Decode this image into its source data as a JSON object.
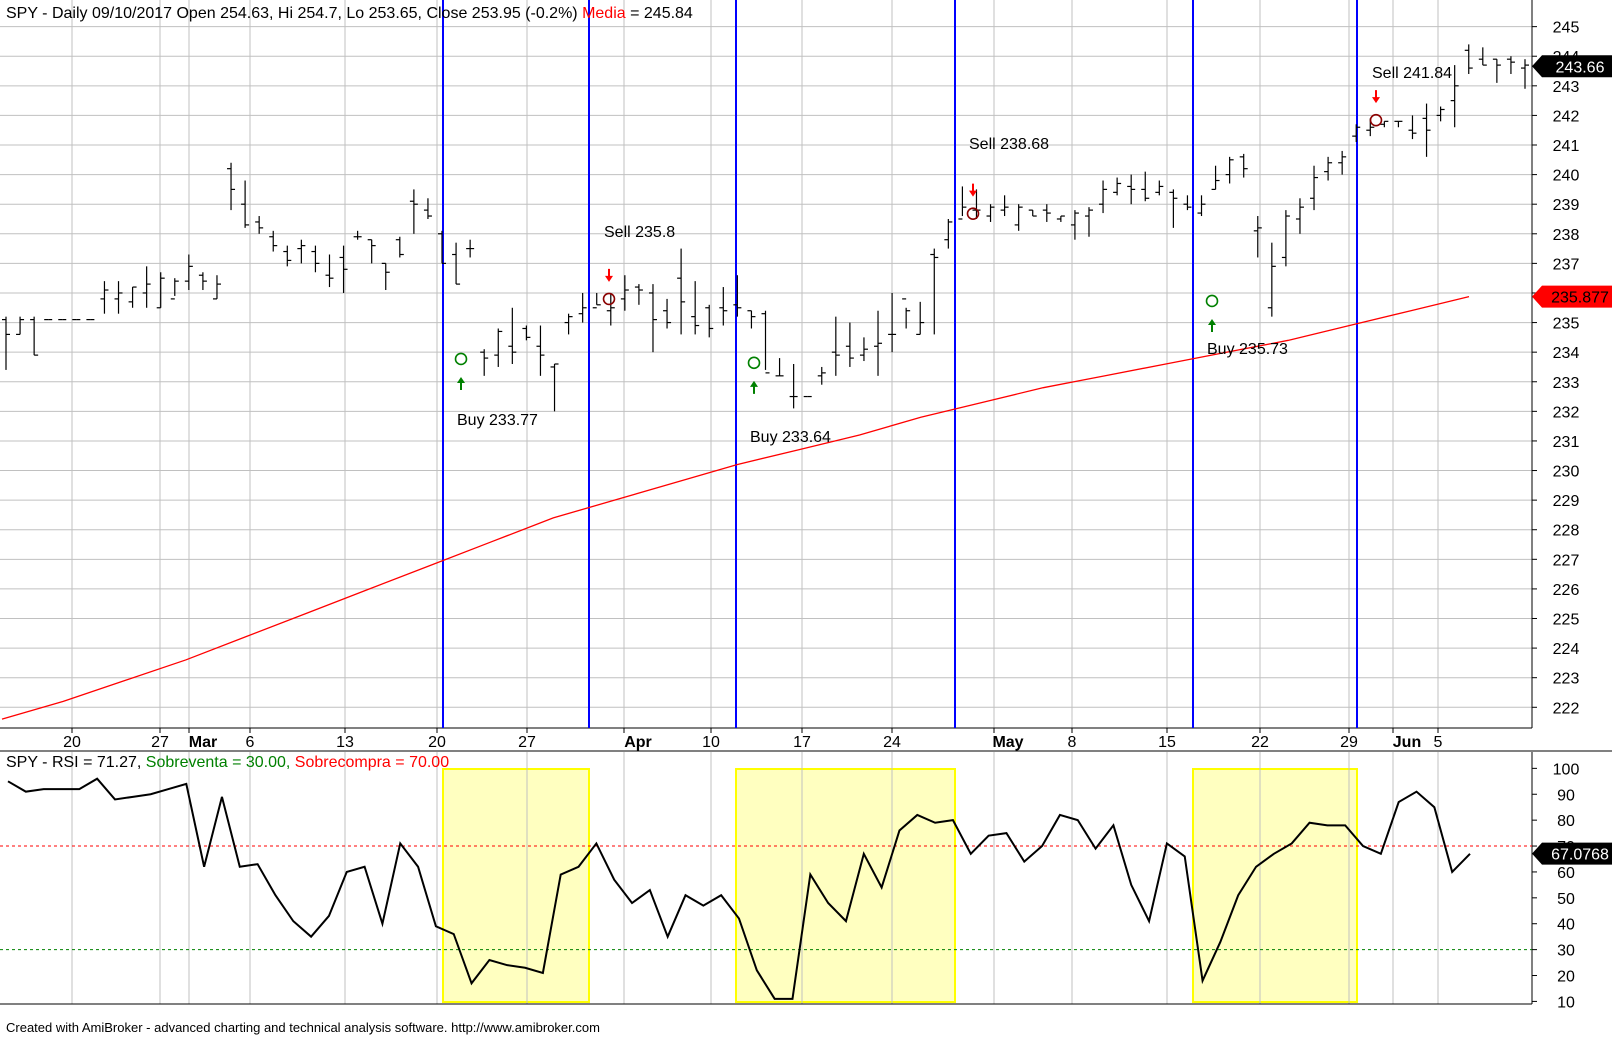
{
  "chart_data": [
    {
      "type": "ohlc",
      "header": {
        "symbol_line": "SPY - Daily 09/10/2017 Open 254.63, Hi 254.7, Lo 253.65, Close 253.95 (-0.2%)",
        "ma_label": "Media",
        "ma_value": "= 245.84"
      },
      "ylim": [
        221.3,
        245.9
      ],
      "y_ticks": [
        222,
        223,
        224,
        225,
        226,
        227,
        228,
        229,
        230,
        231,
        232,
        233,
        234,
        235,
        236,
        237,
        238,
        239,
        240,
        241,
        242,
        243,
        244,
        245
      ],
      "x_tick_labels": [
        "20",
        "27",
        "Mar",
        "6",
        "13",
        "20",
        "27",
        "Apr",
        "10",
        "17",
        "24",
        "May",
        "8",
        "15",
        "22",
        "29",
        "Jun",
        "5"
      ],
      "x_tick_bold": [
        "Mar",
        "Apr",
        "May",
        "Jun"
      ],
      "last_price": {
        "value": 243.66,
        "label": "243.66"
      },
      "ma_last": {
        "value": 235.877,
        "label": "235.877"
      },
      "bars": [
        [
          235.1,
          235.2,
          233.4,
          234.6
        ],
        [
          234.6,
          235.2,
          234.6,
          235.1
        ],
        [
          235.1,
          235.2,
          233.9,
          233.9
        ],
        [
          235.1,
          235.1,
          235.1,
          235.1
        ],
        [
          235.1,
          235.1,
          235.1,
          235.1
        ],
        [
          235.1,
          235.1,
          235.1,
          235.1
        ],
        [
          235.1,
          235.1,
          235.1,
          235.1
        ],
        [
          235.8,
          236.4,
          235.3,
          236.1
        ],
        [
          235.8,
          236.4,
          235.3,
          236.0
        ],
        [
          235.7,
          236.2,
          235.5,
          236.2
        ],
        [
          236.0,
          236.9,
          235.5,
          236.3
        ],
        [
          235.5,
          236.7,
          235.5,
          236.5
        ],
        [
          235.8,
          236.5,
          235.9,
          236.4
        ],
        [
          236.4,
          237.3,
          236.1,
          236.9
        ],
        [
          236.6,
          236.7,
          236.1,
          236.4
        ],
        [
          235.8,
          236.6,
          235.8,
          236.3
        ],
        [
          240.2,
          240.4,
          238.8,
          239.5
        ],
        [
          239.0,
          239.8,
          238.2,
          238.3
        ],
        [
          238.4,
          238.6,
          238.0,
          238.2
        ],
        [
          237.9,
          238.1,
          237.4,
          237.6
        ],
        [
          237.4,
          237.6,
          236.9,
          237.1
        ],
        [
          237.5,
          237.8,
          237.0,
          237.6
        ],
        [
          237.4,
          237.6,
          236.7,
          237.0
        ],
        [
          236.6,
          237.3,
          236.2,
          236.5
        ],
        [
          237.2,
          237.6,
          236.0,
          236.8
        ],
        [
          237.9,
          238.1,
          237.8,
          237.9
        ],
        [
          237.8,
          237.8,
          237.0,
          237.6
        ],
        [
          237.0,
          237.0,
          236.1,
          236.7
        ],
        [
          237.8,
          237.9,
          237.2,
          237.3
        ],
        [
          239.1,
          239.5,
          238.0,
          239.0
        ],
        [
          238.8,
          239.2,
          238.5,
          238.6
        ],
        [
          238.0,
          238.1,
          237.0,
          237.0
        ],
        [
          237.3,
          237.7,
          236.3,
          236.3
        ],
        [
          237.5,
          237.8,
          237.2,
          237.5
        ],
        [
          234.0,
          234.1,
          233.2,
          233.8
        ],
        [
          233.9,
          234.8,
          233.5,
          234.7
        ],
        [
          234.2,
          235.5,
          233.6,
          234.0
        ],
        [
          234.8,
          234.9,
          234.4,
          234.5
        ],
        [
          234.2,
          234.9,
          233.2,
          233.9
        ],
        [
          233.5,
          233.6,
          232.0,
          233.6
        ],
        [
          235.0,
          235.3,
          234.6,
          235.2
        ],
        [
          235.3,
          236.0,
          235.0,
          235.5
        ],
        [
          235.5,
          236.0,
          235.6,
          235.6
        ],
        [
          235.4,
          236.0,
          234.9,
          235.5
        ],
        [
          235.8,
          236.6,
          235.4,
          236.1
        ],
        [
          236.2,
          236.3,
          235.6,
          236.1
        ],
        [
          236.0,
          236.3,
          234.0,
          235.1
        ],
        [
          235.4,
          235.8,
          234.8,
          235.0
        ],
        [
          236.5,
          237.5,
          234.6,
          235.7
        ],
        [
          235.2,
          236.4,
          234.6,
          234.9
        ],
        [
          235.5,
          235.6,
          234.5,
          234.8
        ],
        [
          235.5,
          236.2,
          234.9,
          235.4
        ],
        [
          235.6,
          236.6,
          235.2,
          235.5
        ],
        [
          235.4,
          235.4,
          234.8,
          235.2
        ],
        [
          235.3,
          235.4,
          233.4,
          233.3
        ],
        [
          233.2,
          233.8,
          233.2,
          233.2
        ],
        [
          232.5,
          233.6,
          232.1,
          232.5
        ],
        [
          232.5,
          232.5,
          232.5,
          232.5
        ],
        [
          233.2,
          233.5,
          232.9,
          233.3
        ],
        [
          234.0,
          235.2,
          233.2,
          233.9
        ],
        [
          234.2,
          235.0,
          233.5,
          233.8
        ],
        [
          233.9,
          234.5,
          233.7,
          234.1
        ],
        [
          234.2,
          235.4,
          233.2,
          234.3
        ],
        [
          234.6,
          236.0,
          234.0,
          234.6
        ],
        [
          235.8,
          235.5,
          234.8,
          235.4
        ],
        [
          234.6,
          235.7,
          234.6,
          235.0
        ],
        [
          237.3,
          237.5,
          234.6,
          237.2
        ],
        [
          237.8,
          238.5,
          237.5,
          238.4
        ],
        [
          238.5,
          239.6,
          238.6,
          238.9
        ],
        [
          238.8,
          239.5,
          238.5,
          238.8
        ],
        [
          238.6,
          239.0,
          238.4,
          238.9
        ],
        [
          238.8,
          239.3,
          238.6,
          238.9
        ],
        [
          238.3,
          239.0,
          238.1,
          238.9
        ],
        [
          238.8,
          238.8,
          238.6,
          238.6
        ],
        [
          238.8,
          239.0,
          238.4,
          238.7
        ],
        [
          238.5,
          238.6,
          238.4,
          238.6
        ],
        [
          238.3,
          238.8,
          237.8,
          238.7
        ],
        [
          238.6,
          238.9,
          237.9,
          238.8
        ],
        [
          239.0,
          239.8,
          238.7,
          239.5
        ],
        [
          239.4,
          239.9,
          239.3,
          239.7
        ],
        [
          239.6,
          240.0,
          239.0,
          239.5
        ],
        [
          239.5,
          240.1,
          239.1,
          239.2
        ],
        [
          239.4,
          239.8,
          239.3,
          239.6
        ],
        [
          239.4,
          239.5,
          238.2,
          239.2
        ],
        [
          239.0,
          239.3,
          238.8,
          238.9
        ],
        [
          238.7,
          239.3,
          238.6,
          239.0
        ],
        [
          239.5,
          240.3,
          239.5,
          239.8
        ],
        [
          240.0,
          240.6,
          239.7,
          240.5
        ],
        [
          240.6,
          240.7,
          239.9,
          240.2
        ],
        [
          238.1,
          238.6,
          237.2,
          238.2
        ],
        [
          235.5,
          237.7,
          235.2,
          236.9
        ],
        [
          237.2,
          238.8,
          236.9,
          238.6
        ],
        [
          238.5,
          239.2,
          238.0,
          238.9
        ],
        [
          239.2,
          240.3,
          238.8,
          239.9
        ],
        [
          240.1,
          240.6,
          239.8,
          240.4
        ],
        [
          240.4,
          240.8,
          240.0,
          240.6
        ],
        [
          241.3,
          241.7,
          241.1,
          241.6
        ],
        [
          241.5,
          241.9,
          241.3,
          241.6
        ],
        [
          241.7,
          241.8,
          241.6,
          241.8
        ],
        [
          241.8,
          241.8,
          241.6,
          241.8
        ],
        [
          241.5,
          242.0,
          241.2,
          241.4
        ],
        [
          241.9,
          242.4,
          240.6,
          241.5
        ],
        [
          242.0,
          242.3,
          241.8,
          242.2
        ],
        [
          242.5,
          243.7,
          241.6,
          243.0
        ],
        [
          244.2,
          244.4,
          243.4,
          243.6
        ],
        [
          243.9,
          244.3,
          243.7,
          243.7
        ],
        [
          243.9,
          243.9,
          243.1,
          243.7
        ],
        [
          243.9,
          244.0,
          243.4,
          243.8
        ],
        [
          243.6,
          243.9,
          242.9,
          243.7
        ]
      ],
      "moving_average": [
        [
          0,
          221.6
        ],
        [
          20,
          222.2
        ],
        [
          40,
          222.9
        ],
        [
          60,
          223.6
        ],
        [
          80,
          224.4
        ],
        [
          100,
          225.2
        ],
        [
          120,
          226.0
        ],
        [
          140,
          226.8
        ],
        [
          160,
          227.6
        ],
        [
          180,
          228.4
        ],
        [
          200,
          229.0
        ],
        [
          220,
          229.6
        ],
        [
          240,
          230.2
        ],
        [
          260,
          230.7
        ],
        [
          280,
          231.2
        ],
        [
          300,
          231.8
        ],
        [
          320,
          232.3
        ],
        [
          340,
          232.8
        ],
        [
          360,
          233.2
        ],
        [
          380,
          233.6
        ],
        [
          400,
          234.0
        ],
        [
          420,
          234.4
        ],
        [
          440,
          234.9
        ],
        [
          460,
          235.4
        ],
        [
          479,
          235.877
        ]
      ],
      "signals": [
        {
          "kind": "buy",
          "label": "Buy 233.77",
          "bar": 40,
          "price": 233.77
        },
        {
          "kind": "sell",
          "label": "Sell 235.8",
          "bar": 53,
          "price": 235.8
        },
        {
          "kind": "buy",
          "label": "Buy 233.64",
          "bar": 67,
          "price": 233.64
        },
        {
          "kind": "sell",
          "label": "Sell 238.68",
          "bar": 82,
          "price": 238.68
        },
        {
          "kind": "buy",
          "label": "Buy 235.73",
          "bar": 97,
          "price": 235.73
        },
        {
          "kind": "sell",
          "label": "Sell 241.84",
          "bar": 110,
          "price": 241.84
        }
      ]
    },
    {
      "type": "line",
      "header": {
        "rsi_text": "SPY - RSI = 71.27,",
        "oversold_text": "Sobreventa = 30.00,",
        "overbought_text": "Sobrecompra = 70.00"
      },
      "ylim": [
        9,
        104
      ],
      "y_ticks": [
        10,
        20,
        30,
        40,
        50,
        60,
        70,
        80,
        90,
        100
      ],
      "oversold": 30,
      "overbought": 70,
      "last_value": {
        "value": 67.0768,
        "label": "67.0768"
      },
      "values": [
        95,
        91,
        92,
        92,
        92,
        96,
        88,
        89,
        90,
        92,
        94,
        62,
        89,
        62,
        63,
        51,
        41,
        35,
        43,
        60,
        62,
        40,
        71,
        62,
        39,
        36,
        17,
        26,
        24,
        23,
        21,
        59,
        62,
        71,
        57,
        48,
        53,
        35,
        51,
        47,
        51,
        42,
        22,
        11,
        11,
        59,
        48,
        41,
        67,
        54,
        76,
        82,
        79,
        80,
        67,
        74,
        75,
        64,
        70,
        82,
        80,
        69,
        78,
        55,
        41,
        71,
        66,
        18,
        33,
        51,
        62,
        67,
        71,
        79,
        78,
        78,
        70,
        67,
        87,
        91,
        85,
        60,
        67
      ],
      "highlight_ranges": [
        [
          26,
          34
        ],
        [
          42,
          53
        ],
        [
          67,
          76
        ]
      ]
    }
  ],
  "footer": "Created with AmiBroker - advanced charting and technical analysis software. http://www.amibroker.com",
  "colors": {
    "price_bars": "#000000",
    "moving_average": "#ff0000",
    "period_lines": "#0000ff",
    "grid": "#c0c0c0",
    "buy": "#008000",
    "sell": "#ff0000",
    "highlight_fill": "#ffffc0",
    "highlight_stroke": "#ffff00",
    "oversold_line": "#008000",
    "overbought_line": "#ff0000"
  }
}
